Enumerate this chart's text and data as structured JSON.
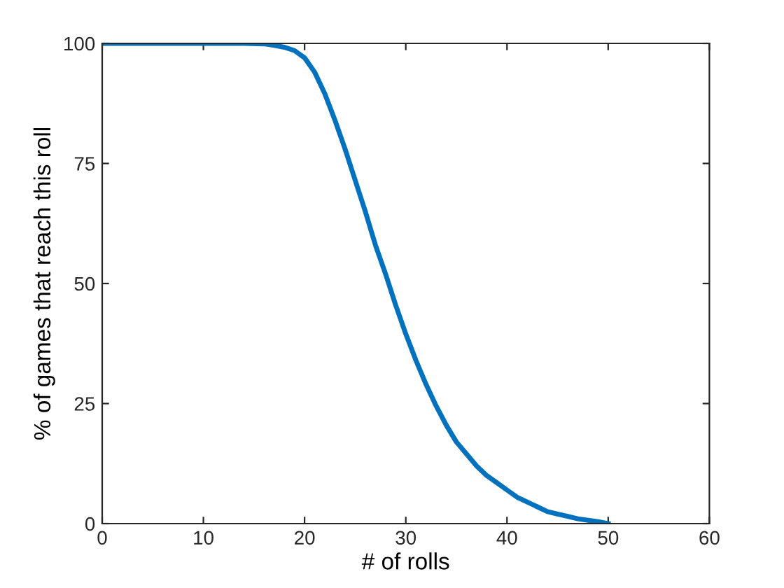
{
  "chart_data": {
    "type": "line",
    "xlabel": "# of rolls",
    "ylabel": "% of games that reach this roll",
    "x": [
      0,
      5,
      10,
      14,
      16,
      17,
      18,
      19,
      20,
      21,
      22,
      23,
      24,
      25,
      26,
      27,
      28,
      29,
      30,
      31,
      32,
      33,
      34,
      35,
      36,
      37,
      38,
      39,
      40,
      41,
      42,
      43,
      44,
      45,
      46,
      47,
      48,
      49,
      50
    ],
    "series": [
      {
        "color": "#0072bd",
        "values": [
          100,
          100,
          100,
          100,
          99.9,
          99.6,
          99.2,
          98.5,
          97,
          94,
          89.5,
          84,
          78,
          71.5,
          65,
          58,
          52,
          45.5,
          39.5,
          34,
          29,
          24.5,
          20.5,
          17,
          14.5,
          12,
          10,
          8.5,
          7,
          5.5,
          4.5,
          3.5,
          2.5,
          2,
          1.5,
          1,
          0.7,
          0.4,
          0
        ]
      }
    ],
    "xlim": [
      0,
      60
    ],
    "xticks": [
      0,
      10,
      20,
      30,
      40,
      50,
      60
    ],
    "ylim": [
      0,
      100
    ],
    "yticks": [
      0,
      25,
      50,
      75,
      100
    ],
    "grid": false,
    "legend": false,
    "marker": "none",
    "line_style": "solid"
  }
}
